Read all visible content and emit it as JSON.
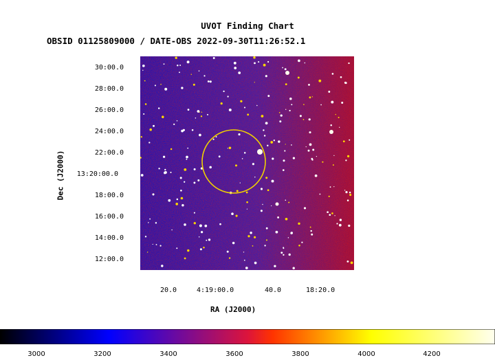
{
  "title": "UVOT Finding Chart",
  "subtitle": "OBSID 01125809000 / DATE-OBS 2022-09-30T11:26:52.1",
  "axes": {
    "xlabel": "RA (J2000)",
    "ylabel": "Dec (J2000)",
    "x_ticks": [
      "20.0",
      "4:19:00.0",
      "40.0",
      "18:20.0"
    ],
    "y_ticks": [
      "30:00.0",
      "28:00.0",
      "26:00.0",
      "24:00.0",
      "22:00.0",
      "13:20:00.0",
      "18:00.0",
      "16:00.0",
      "14:00.0",
      "12:00.0"
    ]
  },
  "colorbar": {
    "ticks": [
      "3000",
      "3200",
      "3400",
      "3600",
      "3800",
      "4000",
      "4200"
    ],
    "colormap": [
      "#000000",
      "#0000ff",
      "#dc143c",
      "#ff3300",
      "#ffff00",
      "#ffffee"
    ]
  },
  "overlay": {
    "circle_color": "#f0d000",
    "shape": "circle"
  }
}
